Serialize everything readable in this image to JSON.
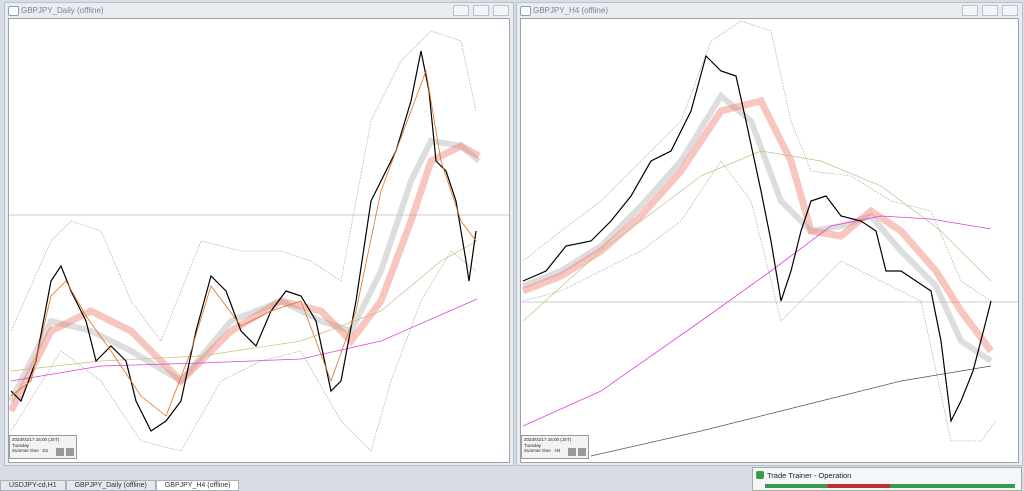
{
  "windows": [
    {
      "title": "GBPJPY_Daily (offline)",
      "info": {
        "datetime": "2023/01/17 16:00 (JST)",
        "weekday": "Tuesday",
        "season": "Summer time",
        "timeframe": "D1"
      }
    },
    {
      "title": "GBPJPY_H4 (offline)",
      "info": {
        "datetime": "2023/01/17 16:00 (JST)",
        "weekday": "Tuesday",
        "season": "Summer time",
        "timeframe": "H4"
      }
    }
  ],
  "tabs": [
    "USDJPY-cd,H1",
    "GBPJPY_Daily (offline)",
    "GBPJPY_H4 (offline)"
  ],
  "trade_trainer": {
    "title": "Trade Trainer - Operation"
  }
}
